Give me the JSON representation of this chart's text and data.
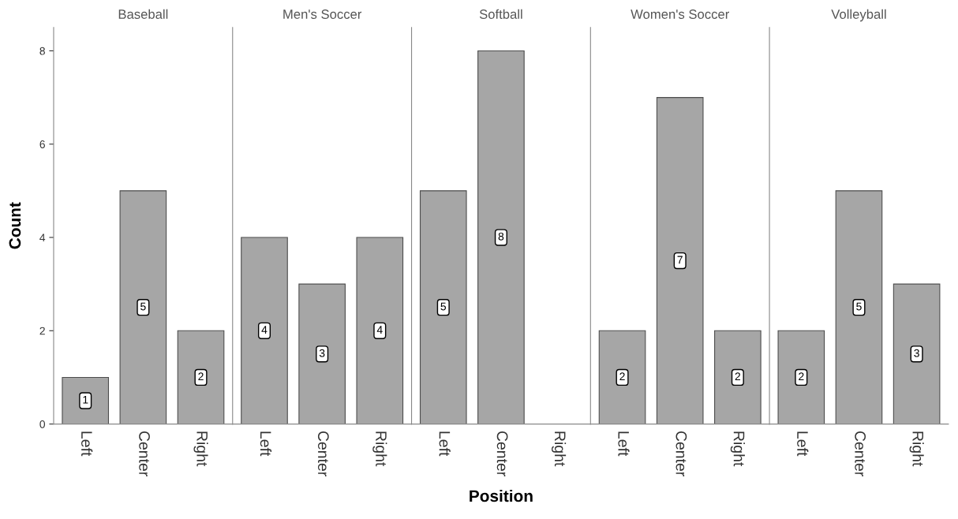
{
  "chart_data": [
    {
      "type": "bar",
      "title": "Baseball",
      "ylabel": "Count",
      "categories": [
        "Left",
        "Center",
        "Right"
      ],
      "values": [
        1,
        5,
        2
      ],
      "color": "#a6a6a6",
      "ylim": [
        0,
        8.5
      ],
      "yticks": [
        0,
        2,
        4,
        6,
        8
      ],
      "data_labels": true
    },
    {
      "type": "bar",
      "title": "Men's Soccer",
      "categories": [
        "Left",
        "Center",
        "Right"
      ],
      "values": [
        4,
        3,
        4
      ],
      "color": "#a6a6a6",
      "ylim": [
        0,
        8.5
      ],
      "yticks": [
        0,
        2,
        4,
        6,
        8
      ],
      "tick_labels": "x",
      "data_labels": true
    },
    {
      "type": "bar",
      "title": "Softball",
      "xlabel": "Position",
      "categories": [
        "Left",
        "Center",
        "Right"
      ],
      "values": [
        5,
        8,
        null
      ],
      "value_labels": [
        "5",
        "8",
        null
      ],
      "color": "#a6a6a6",
      "ylim": [
        0,
        8.5
      ],
      "yticks": [
        0,
        2,
        4,
        6,
        8
      ],
      "tick_labels": "x"
    },
    {
      "type": "bar",
      "title": "Women's Soccer",
      "categories": [
        "Left",
        "Center",
        "Right"
      ],
      "values": [
        2,
        7,
        2
      ],
      "color": "#a6a6a6",
      "ylim": [
        0,
        8.5
      ],
      "yticks": [
        0,
        2,
        4,
        6,
        8
      ],
      "tick_labels": "x",
      "data_labels": true
    },
    {
      "type": "bar",
      "title": "Volleyball",
      "categories": [
        "Left",
        "Center",
        "Right"
      ],
      "values": [
        2,
        5,
        3
      ],
      "color": "#a6a6a6",
      "ylim": [
        0,
        8.5
      ],
      "yticks": [
        0,
        2,
        4,
        6,
        8
      ],
      "tick_labels": "x",
      "data_labels": true
    }
  ]
}
